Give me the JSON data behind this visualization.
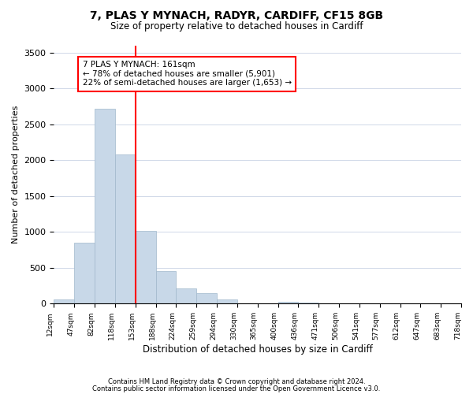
{
  "title": "7, PLAS Y MYNACH, RADYR, CARDIFF, CF15 8GB",
  "subtitle": "Size of property relative to detached houses in Cardiff",
  "xlabel": "Distribution of detached houses by size in Cardiff",
  "ylabel": "Number of detached properties",
  "bin_labels": [
    "12sqm",
    "47sqm",
    "82sqm",
    "118sqm",
    "153sqm",
    "188sqm",
    "224sqm",
    "259sqm",
    "294sqm",
    "330sqm",
    "365sqm",
    "400sqm",
    "436sqm",
    "471sqm",
    "506sqm",
    "541sqm",
    "577sqm",
    "612sqm",
    "647sqm",
    "683sqm",
    "718sqm"
  ],
  "bar_heights": [
    55,
    850,
    2720,
    2080,
    1010,
    450,
    210,
    145,
    55,
    0,
    0,
    30,
    20,
    0,
    0,
    0,
    0,
    0,
    0,
    0
  ],
  "bar_color": "#c8d8e8",
  "bar_edge_color": "#a0b8cc",
  "vline_x_index": 4,
  "vline_color": "red",
  "annotation_title": "7 PLAS Y MYNACH: 161sqm",
  "annotation_line1": "← 78% of detached houses are smaller (5,901)",
  "annotation_line2": "22% of semi-detached houses are larger (1,653) →",
  "ylim": [
    0,
    3600
  ],
  "yticks": [
    0,
    500,
    1000,
    1500,
    2000,
    2500,
    3000,
    3500
  ],
  "footer1": "Contains HM Land Registry data © Crown copyright and database right 2024.",
  "footer2": "Contains public sector information licensed under the Open Government Licence v3.0.",
  "background_color": "#ffffff",
  "grid_color": "#d0d8e8"
}
